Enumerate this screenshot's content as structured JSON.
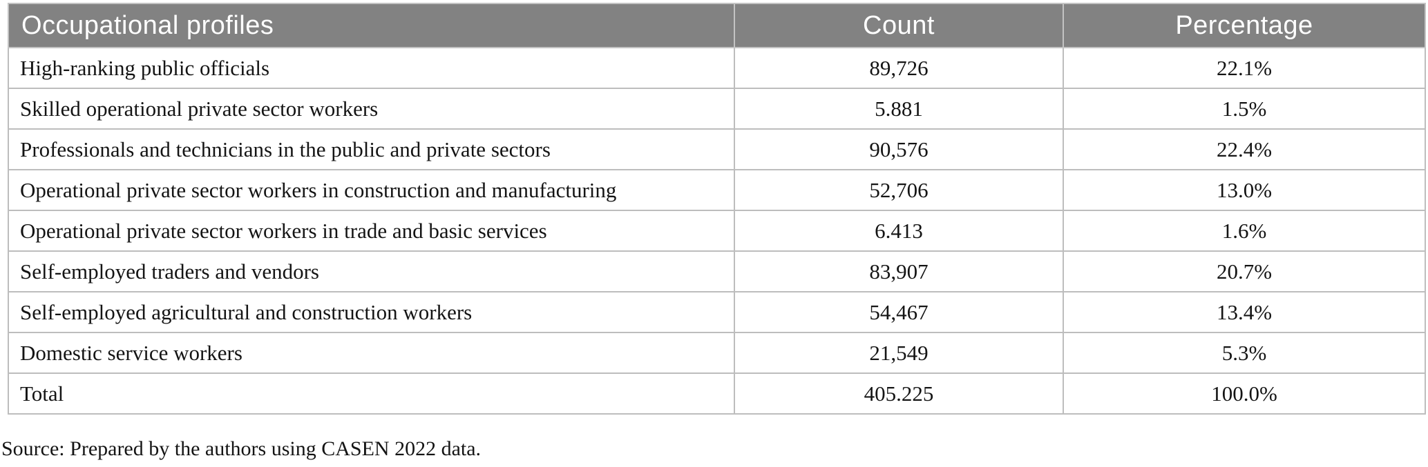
{
  "table": {
    "columns": {
      "profile": "Occupational profiles",
      "count": "Count",
      "percentage": "Percentage"
    },
    "rows": [
      {
        "profile": "High-ranking public officials",
        "count": "89,726",
        "percentage": "22.1%"
      },
      {
        "profile": "Skilled operational private sector workers",
        "count": "5.881",
        "percentage": "1.5%"
      },
      {
        "profile": "Professionals and technicians in the public and private sectors",
        "count": "90,576",
        "percentage": "22.4%"
      },
      {
        "profile": "Operational private sector workers in construction and manufacturing",
        "count": "52,706",
        "percentage": "13.0%"
      },
      {
        "profile": "Operational private sector workers in trade and basic services",
        "count": "6.413",
        "percentage": "1.6%"
      },
      {
        "profile": "Self-employed traders and vendors",
        "count": "83,907",
        "percentage": "20.7%"
      },
      {
        "profile": "Self-employed agricultural and construction workers",
        "count": "54,467",
        "percentage": "13.4%"
      },
      {
        "profile": "Domestic service workers",
        "count": "21,549",
        "percentage": "5.3%"
      },
      {
        "profile": "Total",
        "count": "405.225",
        "percentage": "100.0%"
      }
    ],
    "source_note": "Source: Prepared by the authors using CASEN 2022 data."
  },
  "colors": {
    "header_background": "#828282",
    "header_text": "#ffffff",
    "border": "#bdbdbd",
    "body_text": "#141414"
  },
  "chart_data": {
    "type": "table",
    "title": "",
    "columns": [
      "Occupational profiles",
      "Count",
      "Percentage"
    ],
    "categories": [
      "High-ranking public officials",
      "Skilled operational private sector workers",
      "Professionals and technicians in the public and private sectors",
      "Operational private sector workers in construction and manufacturing",
      "Operational private sector workers in trade and basic services",
      "Self-employed traders and vendors",
      "Self-employed agricultural and construction workers",
      "Domestic service workers",
      "Total"
    ],
    "series": [
      {
        "name": "Count",
        "values": [
          "89,726",
          "5.881",
          "90,576",
          "52,706",
          "6.413",
          "83,907",
          "54,467",
          "21,549",
          "405.225"
        ]
      },
      {
        "name": "Percentage",
        "values": [
          22.1,
          1.5,
          22.4,
          13.0,
          1.6,
          20.7,
          13.4,
          5.3,
          100.0
        ]
      }
    ],
    "source": "Source: Prepared by the authors using CASEN 2022 data."
  }
}
